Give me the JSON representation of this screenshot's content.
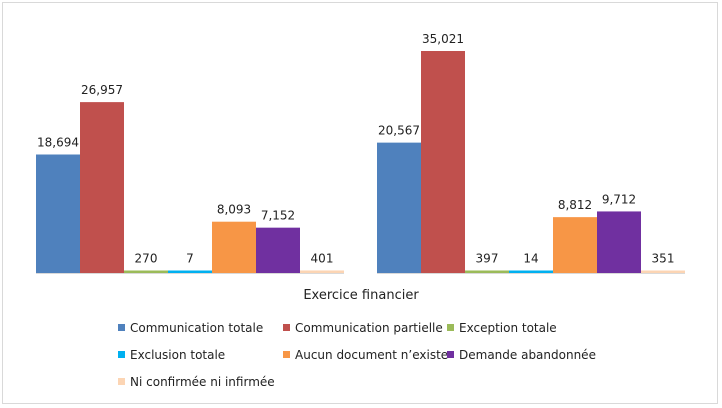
{
  "chart_data": {
    "type": "bar",
    "xlabel": "Exercice financier",
    "categories": [
      "",
      ""
    ],
    "series": [
      {
        "name": "Communication totale",
        "color": "#4F81BD",
        "values": [
          18694,
          20567
        ],
        "labels": [
          "18,694",
          "20,567"
        ]
      },
      {
        "name": "Communication partielle",
        "color": "#C0504D",
        "values": [
          26957,
          35021
        ],
        "labels": [
          "26,957",
          "35,021"
        ]
      },
      {
        "name": "Exception totale",
        "color": "#9BBB59",
        "values": [
          270,
          397
        ],
        "labels": [
          "270",
          "397"
        ]
      },
      {
        "name": "Exclusion totale",
        "color": "#00B0F0",
        "values": [
          7,
          14
        ],
        "labels": [
          "7",
          "14"
        ]
      },
      {
        "name": "Aucun document n’existe",
        "color": "#F79646",
        "values": [
          8093,
          8812
        ],
        "labels": [
          "8,093",
          "8,812"
        ]
      },
      {
        "name": "Demande abandonnée",
        "color": "#7030A0",
        "values": [
          7152,
          9712
        ],
        "labels": [
          "7,152",
          "9,712"
        ]
      },
      {
        "name": "Ni confirmée ni infirmée",
        "color": "#FCD5B4",
        "values": [
          401,
          351
        ],
        "labels": [
          "401",
          "351"
        ]
      }
    ],
    "legend_position": "bottom",
    "grid": false
  }
}
